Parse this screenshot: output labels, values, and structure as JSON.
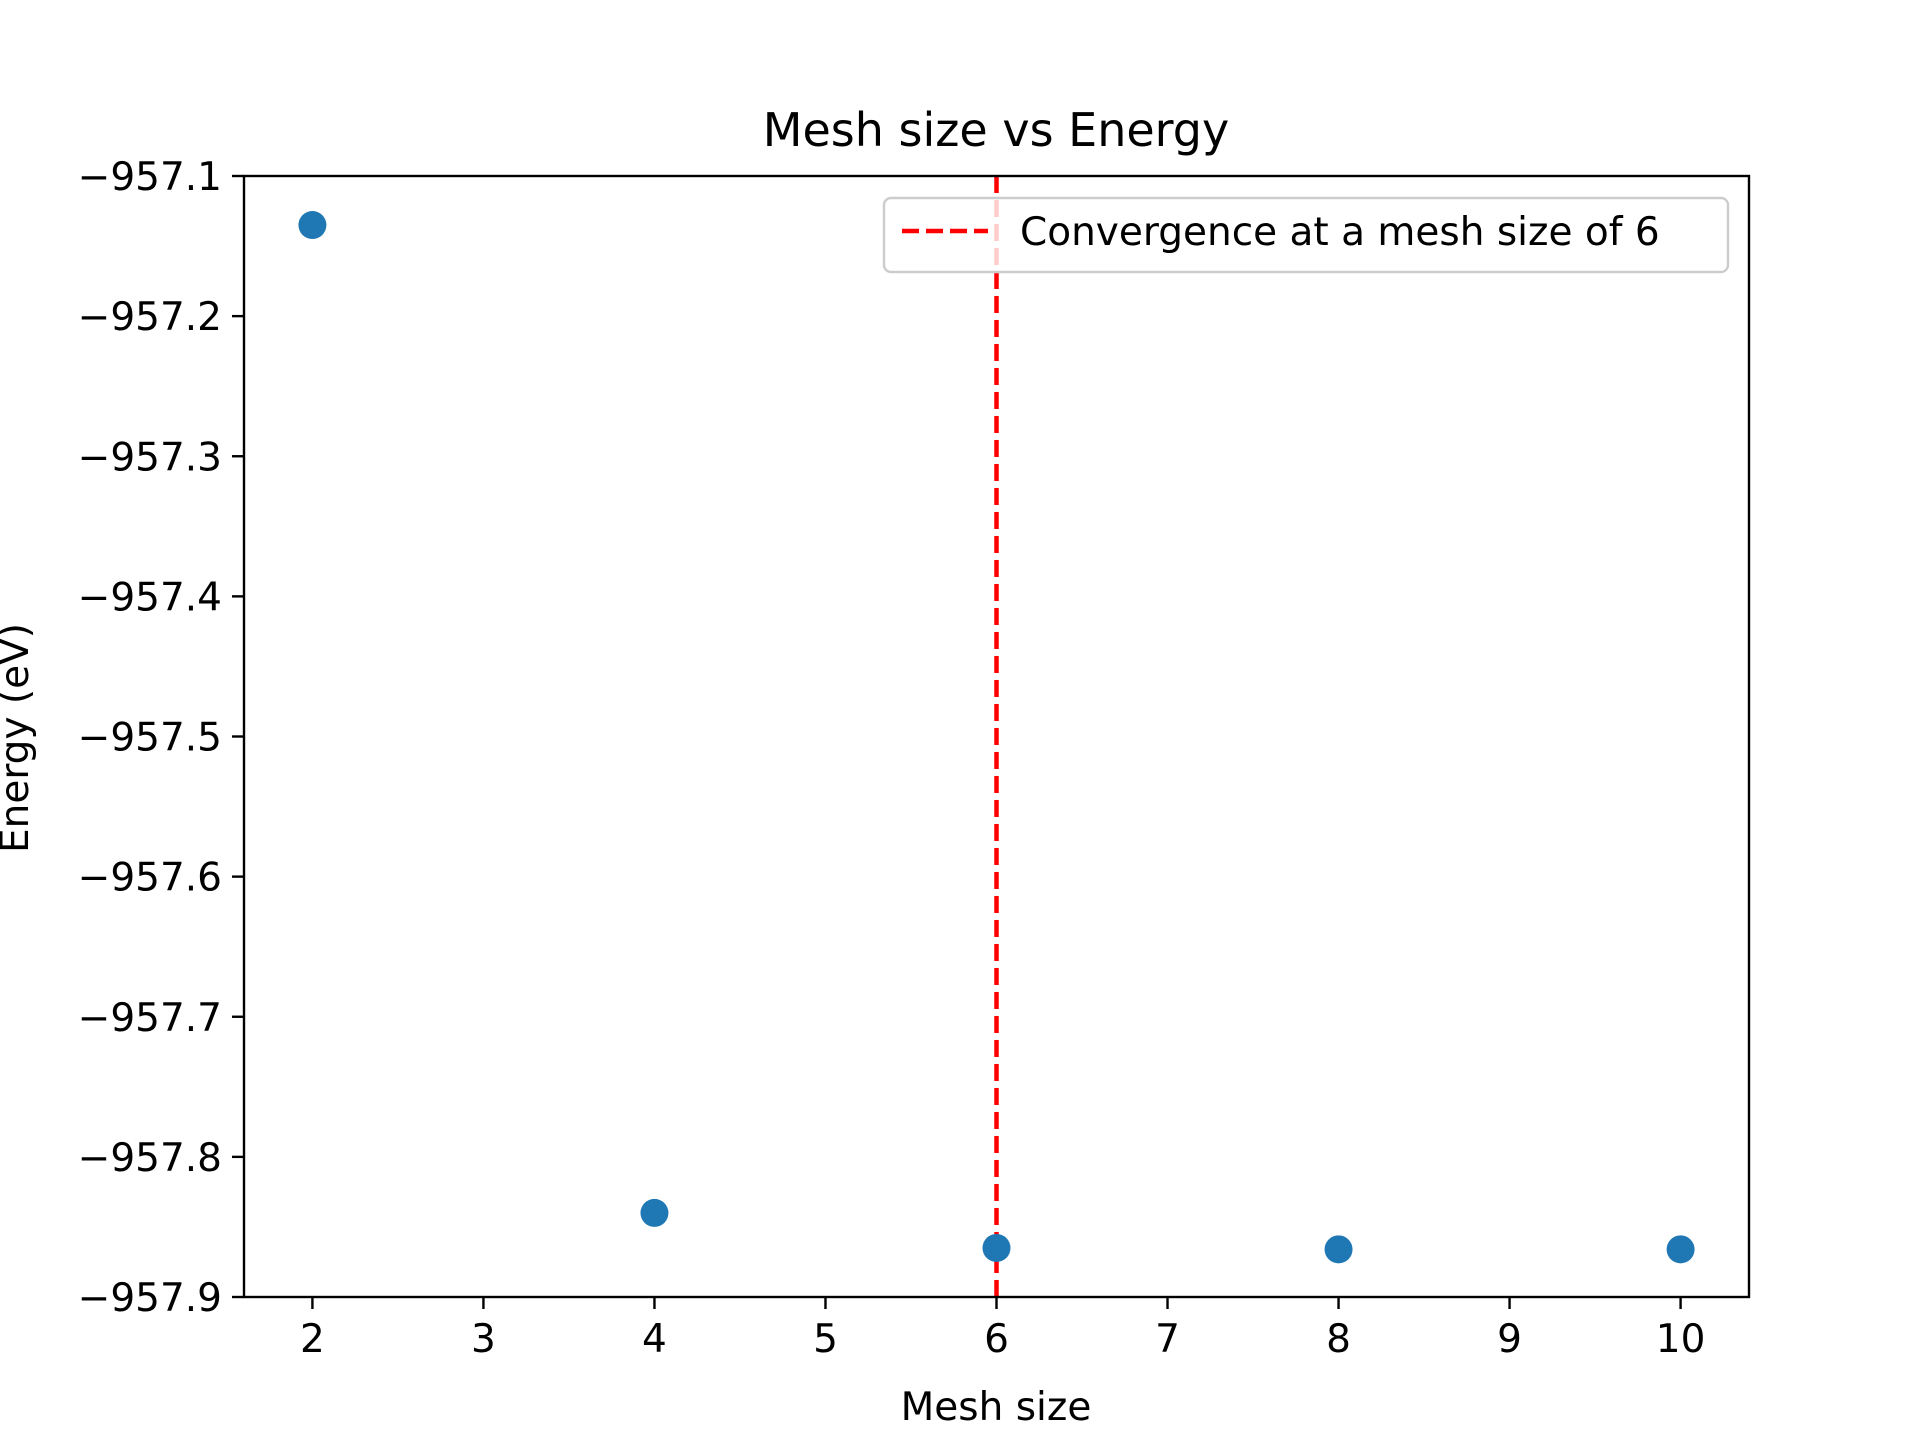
{
  "chart_data": {
    "type": "scatter",
    "title": "Mesh size vs Energy",
    "xlabel": "Mesh size",
    "ylabel": "Energy (eV)",
    "xlim": [
      1.6,
      10.4
    ],
    "ylim": [
      -957.9,
      -957.1
    ],
    "xticks": [
      2,
      3,
      4,
      5,
      6,
      7,
      8,
      9,
      10
    ],
    "yticks": [
      -957.9,
      -957.8,
      -957.7,
      -957.6,
      -957.5,
      -957.4,
      -957.3,
      -957.2,
      -957.1
    ],
    "xtick_labels": [
      "2",
      "3",
      "4",
      "5",
      "6",
      "7",
      "8",
      "9",
      "10"
    ],
    "ytick_labels": [
      "−957.9",
      "−957.8",
      "−957.7",
      "−957.6",
      "−957.5",
      "−957.4",
      "−957.3",
      "−957.2",
      "−957.1"
    ],
    "grid": false,
    "series": [
      {
        "x": [
          2,
          4,
          6,
          8,
          10
        ],
        "y": [
          -957.135,
          -957.84,
          -957.865,
          -957.866,
          -957.866
        ],
        "color": "#1f77b4"
      }
    ],
    "vline": {
      "x": 6,
      "label": "Convergence at a mesh size of 6",
      "color": "#ff0000",
      "style": "dashed"
    },
    "legend": {
      "location": "upper right",
      "entries": [
        "Convergence at a mesh size of 6"
      ]
    }
  }
}
